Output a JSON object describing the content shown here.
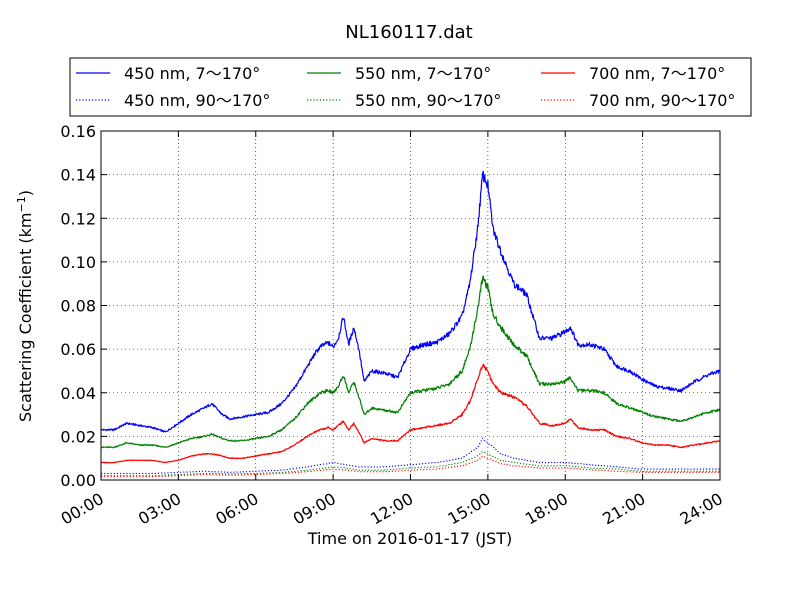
{
  "chart_data": {
    "type": "line",
    "title": "NL160117.dat",
    "xlabel": "Time on 2016-01-17 (JST)",
    "ylabel": "Scattering Coefficient (km",
    "ylabel_sup": "−1",
    "ylabel_end": ")",
    "x_unit": "hours",
    "xlim": [
      0,
      24
    ],
    "ylim": [
      0,
      0.16
    ],
    "grid": true,
    "legend_placement": "top, above plot, 3 columns",
    "x_ticks": [
      {
        "v": 0,
        "label": "00:00"
      },
      {
        "v": 3,
        "label": "03:00"
      },
      {
        "v": 6,
        "label": "06:00"
      },
      {
        "v": 9,
        "label": "09:00"
      },
      {
        "v": 12,
        "label": "12:00"
      },
      {
        "v": 15,
        "label": "15:00"
      },
      {
        "v": 18,
        "label": "18:00"
      },
      {
        "v": 21,
        "label": "21:00"
      },
      {
        "v": 24,
        "label": "24:00"
      }
    ],
    "y_ticks": [
      {
        "v": 0,
        "label": "0.00"
      },
      {
        "v": 0.02,
        "label": "0.02"
      },
      {
        "v": 0.04,
        "label": "0.04"
      },
      {
        "v": 0.06,
        "label": "0.06"
      },
      {
        "v": 0.08,
        "label": "0.08"
      },
      {
        "v": 0.1,
        "label": "0.10"
      },
      {
        "v": 0.12,
        "label": "0.12"
      },
      {
        "v": 0.14,
        "label": "0.14"
      },
      {
        "v": 0.16,
        "label": "0.16"
      }
    ],
    "series": [
      {
        "name": "450 nm, 7～170°",
        "color": "#0000ff",
        "style": "solid",
        "points": [
          [
            0,
            0.023
          ],
          [
            0.5,
            0.023
          ],
          [
            1,
            0.026
          ],
          [
            1.5,
            0.025
          ],
          [
            2,
            0.024
          ],
          [
            2.5,
            0.022
          ],
          [
            3,
            0.026
          ],
          [
            3.5,
            0.03
          ],
          [
            4,
            0.033
          ],
          [
            4.3,
            0.035
          ],
          [
            4.7,
            0.03
          ],
          [
            5,
            0.028
          ],
          [
            5.5,
            0.029
          ],
          [
            6,
            0.03
          ],
          [
            6.5,
            0.031
          ],
          [
            7,
            0.035
          ],
          [
            7.5,
            0.042
          ],
          [
            8,
            0.052
          ],
          [
            8.3,
            0.058
          ],
          [
            8.5,
            0.061
          ],
          [
            8.8,
            0.063
          ],
          [
            9,
            0.061
          ],
          [
            9.2,
            0.065
          ],
          [
            9.4,
            0.075
          ],
          [
            9.6,
            0.062
          ],
          [
            9.8,
            0.07
          ],
          [
            10,
            0.06
          ],
          [
            10.2,
            0.045
          ],
          [
            10.5,
            0.05
          ],
          [
            11,
            0.049
          ],
          [
            11.5,
            0.047
          ],
          [
            12,
            0.06
          ],
          [
            12.5,
            0.062
          ],
          [
            13,
            0.063
          ],
          [
            13.5,
            0.067
          ],
          [
            14,
            0.075
          ],
          [
            14.3,
            0.09
          ],
          [
            14.6,
            0.115
          ],
          [
            14.8,
            0.14
          ],
          [
            15,
            0.135
          ],
          [
            15.2,
            0.115
          ],
          [
            15.5,
            0.105
          ],
          [
            16,
            0.09
          ],
          [
            16.5,
            0.085
          ],
          [
            17,
            0.065
          ],
          [
            17.5,
            0.065
          ],
          [
            18,
            0.068
          ],
          [
            18.2,
            0.07
          ],
          [
            18.5,
            0.062
          ],
          [
            19,
            0.062
          ],
          [
            19.5,
            0.06
          ],
          [
            20,
            0.052
          ],
          [
            20.5,
            0.05
          ],
          [
            21,
            0.046
          ],
          [
            21.5,
            0.043
          ],
          [
            22,
            0.042
          ],
          [
            22.5,
            0.041
          ],
          [
            23,
            0.045
          ],
          [
            23.5,
            0.048
          ],
          [
            24,
            0.05
          ]
        ]
      },
      {
        "name": "550 nm, 7～170°",
        "color": "#008000",
        "style": "solid",
        "points": [
          [
            0,
            0.015
          ],
          [
            0.5,
            0.015
          ],
          [
            1,
            0.017
          ],
          [
            1.5,
            0.016
          ],
          [
            2,
            0.016
          ],
          [
            2.5,
            0.015
          ],
          [
            3,
            0.017
          ],
          [
            3.5,
            0.019
          ],
          [
            4,
            0.02
          ],
          [
            4.3,
            0.021
          ],
          [
            4.7,
            0.019
          ],
          [
            5,
            0.018
          ],
          [
            5.5,
            0.018
          ],
          [
            6,
            0.019
          ],
          [
            6.5,
            0.02
          ],
          [
            7,
            0.023
          ],
          [
            7.5,
            0.028
          ],
          [
            8,
            0.035
          ],
          [
            8.3,
            0.038
          ],
          [
            8.5,
            0.04
          ],
          [
            8.8,
            0.041
          ],
          [
            9,
            0.04
          ],
          [
            9.2,
            0.043
          ],
          [
            9.4,
            0.048
          ],
          [
            9.6,
            0.04
          ],
          [
            9.8,
            0.045
          ],
          [
            10,
            0.038
          ],
          [
            10.2,
            0.03
          ],
          [
            10.5,
            0.033
          ],
          [
            11,
            0.032
          ],
          [
            11.5,
            0.031
          ],
          [
            12,
            0.04
          ],
          [
            12.5,
            0.041
          ],
          [
            13,
            0.042
          ],
          [
            13.5,
            0.044
          ],
          [
            14,
            0.05
          ],
          [
            14.3,
            0.06
          ],
          [
            14.6,
            0.078
          ],
          [
            14.8,
            0.093
          ],
          [
            15,
            0.088
          ],
          [
            15.2,
            0.076
          ],
          [
            15.5,
            0.07
          ],
          [
            16,
            0.062
          ],
          [
            16.5,
            0.057
          ],
          [
            17,
            0.044
          ],
          [
            17.5,
            0.044
          ],
          [
            18,
            0.045
          ],
          [
            18.2,
            0.047
          ],
          [
            18.5,
            0.041
          ],
          [
            19,
            0.041
          ],
          [
            19.5,
            0.04
          ],
          [
            20,
            0.035
          ],
          [
            20.5,
            0.033
          ],
          [
            21,
            0.031
          ],
          [
            21.5,
            0.029
          ],
          [
            22,
            0.028
          ],
          [
            22.5,
            0.027
          ],
          [
            23,
            0.029
          ],
          [
            23.5,
            0.031
          ],
          [
            24,
            0.032
          ]
        ]
      },
      {
        "name": "700 nm, 7～170°",
        "color": "#ff0000",
        "style": "solid",
        "points": [
          [
            0,
            0.008
          ],
          [
            0.5,
            0.008
          ],
          [
            1,
            0.009
          ],
          [
            1.5,
            0.009
          ],
          [
            2,
            0.009
          ],
          [
            2.5,
            0.008
          ],
          [
            3,
            0.009
          ],
          [
            3.5,
            0.011
          ],
          [
            4,
            0.012
          ],
          [
            4.3,
            0.012
          ],
          [
            4.7,
            0.011
          ],
          [
            5,
            0.01
          ],
          [
            5.5,
            0.01
          ],
          [
            6,
            0.011
          ],
          [
            6.5,
            0.012
          ],
          [
            7,
            0.013
          ],
          [
            7.5,
            0.016
          ],
          [
            8,
            0.02
          ],
          [
            8.3,
            0.022
          ],
          [
            8.5,
            0.023
          ],
          [
            8.8,
            0.024
          ],
          [
            9,
            0.023
          ],
          [
            9.2,
            0.025
          ],
          [
            9.4,
            0.027
          ],
          [
            9.6,
            0.023
          ],
          [
            9.8,
            0.026
          ],
          [
            10,
            0.022
          ],
          [
            10.2,
            0.017
          ],
          [
            10.5,
            0.019
          ],
          [
            11,
            0.018
          ],
          [
            11.5,
            0.018
          ],
          [
            12,
            0.023
          ],
          [
            12.5,
            0.024
          ],
          [
            13,
            0.025
          ],
          [
            13.5,
            0.026
          ],
          [
            14,
            0.03
          ],
          [
            14.3,
            0.036
          ],
          [
            14.6,
            0.046
          ],
          [
            14.8,
            0.053
          ],
          [
            15,
            0.05
          ],
          [
            15.2,
            0.044
          ],
          [
            15.5,
            0.04
          ],
          [
            16,
            0.038
          ],
          [
            16.5,
            0.034
          ],
          [
            17,
            0.026
          ],
          [
            17.5,
            0.025
          ],
          [
            18,
            0.026
          ],
          [
            18.2,
            0.028
          ],
          [
            18.5,
            0.024
          ],
          [
            19,
            0.023
          ],
          [
            19.5,
            0.023
          ],
          [
            20,
            0.02
          ],
          [
            20.5,
            0.019
          ],
          [
            21,
            0.017
          ],
          [
            21.5,
            0.016
          ],
          [
            22,
            0.016
          ],
          [
            22.5,
            0.015
          ],
          [
            23,
            0.016
          ],
          [
            23.5,
            0.017
          ],
          [
            24,
            0.018
          ]
        ]
      },
      {
        "name": "450 nm, 90～170°",
        "color": "#0000ff",
        "style": "dotted",
        "points": [
          [
            0,
            0.003
          ],
          [
            2,
            0.003
          ],
          [
            3,
            0.0035
          ],
          [
            4,
            0.004
          ],
          [
            5,
            0.0035
          ],
          [
            6,
            0.004
          ],
          [
            7,
            0.0045
          ],
          [
            8,
            0.006
          ],
          [
            9,
            0.008
          ],
          [
            9.5,
            0.007
          ],
          [
            10,
            0.006
          ],
          [
            11,
            0.006
          ],
          [
            12,
            0.007
          ],
          [
            13,
            0.008
          ],
          [
            14,
            0.01
          ],
          [
            14.6,
            0.015
          ],
          [
            14.8,
            0.019
          ],
          [
            15,
            0.017
          ],
          [
            15.5,
            0.012
          ],
          [
            16,
            0.01
          ],
          [
            17,
            0.008
          ],
          [
            18,
            0.008
          ],
          [
            19,
            0.007
          ],
          [
            20,
            0.006
          ],
          [
            21,
            0.005
          ],
          [
            22,
            0.005
          ],
          [
            23,
            0.005
          ],
          [
            24,
            0.005
          ]
        ]
      },
      {
        "name": "550 nm, 90～170°",
        "color": "#008000",
        "style": "dotted",
        "points": [
          [
            0,
            0.002
          ],
          [
            2,
            0.002
          ],
          [
            3,
            0.0025
          ],
          [
            4,
            0.003
          ],
          [
            5,
            0.0028
          ],
          [
            6,
            0.003
          ],
          [
            7,
            0.0035
          ],
          [
            8,
            0.0045
          ],
          [
            9,
            0.006
          ],
          [
            9.5,
            0.0055
          ],
          [
            10,
            0.0045
          ],
          [
            11,
            0.0045
          ],
          [
            12,
            0.0055
          ],
          [
            13,
            0.006
          ],
          [
            14,
            0.008
          ],
          [
            14.6,
            0.011
          ],
          [
            14.8,
            0.013
          ],
          [
            15,
            0.012
          ],
          [
            15.5,
            0.009
          ],
          [
            16,
            0.008
          ],
          [
            17,
            0.0065
          ],
          [
            18,
            0.0065
          ],
          [
            19,
            0.0055
          ],
          [
            20,
            0.005
          ],
          [
            21,
            0.004
          ],
          [
            22,
            0.004
          ],
          [
            23,
            0.004
          ],
          [
            24,
            0.004
          ]
        ]
      },
      {
        "name": "700 nm, 90～170°",
        "color": "#ff0000",
        "style": "dotted",
        "points": [
          [
            0,
            0.0015
          ],
          [
            2,
            0.0015
          ],
          [
            3,
            0.002
          ],
          [
            4,
            0.0025
          ],
          [
            5,
            0.0022
          ],
          [
            6,
            0.0025
          ],
          [
            7,
            0.003
          ],
          [
            8,
            0.0038
          ],
          [
            9,
            0.005
          ],
          [
            9.5,
            0.0045
          ],
          [
            10,
            0.0038
          ],
          [
            11,
            0.0038
          ],
          [
            12,
            0.0045
          ],
          [
            13,
            0.005
          ],
          [
            14,
            0.0065
          ],
          [
            14.6,
            0.009
          ],
          [
            14.8,
            0.011
          ],
          [
            15,
            0.01
          ],
          [
            15.5,
            0.0075
          ],
          [
            16,
            0.0065
          ],
          [
            17,
            0.0055
          ],
          [
            18,
            0.0055
          ],
          [
            19,
            0.0047
          ],
          [
            20,
            0.004
          ],
          [
            21,
            0.0035
          ],
          [
            22,
            0.0035
          ],
          [
            23,
            0.0035
          ],
          [
            24,
            0.0035
          ]
        ]
      }
    ]
  }
}
